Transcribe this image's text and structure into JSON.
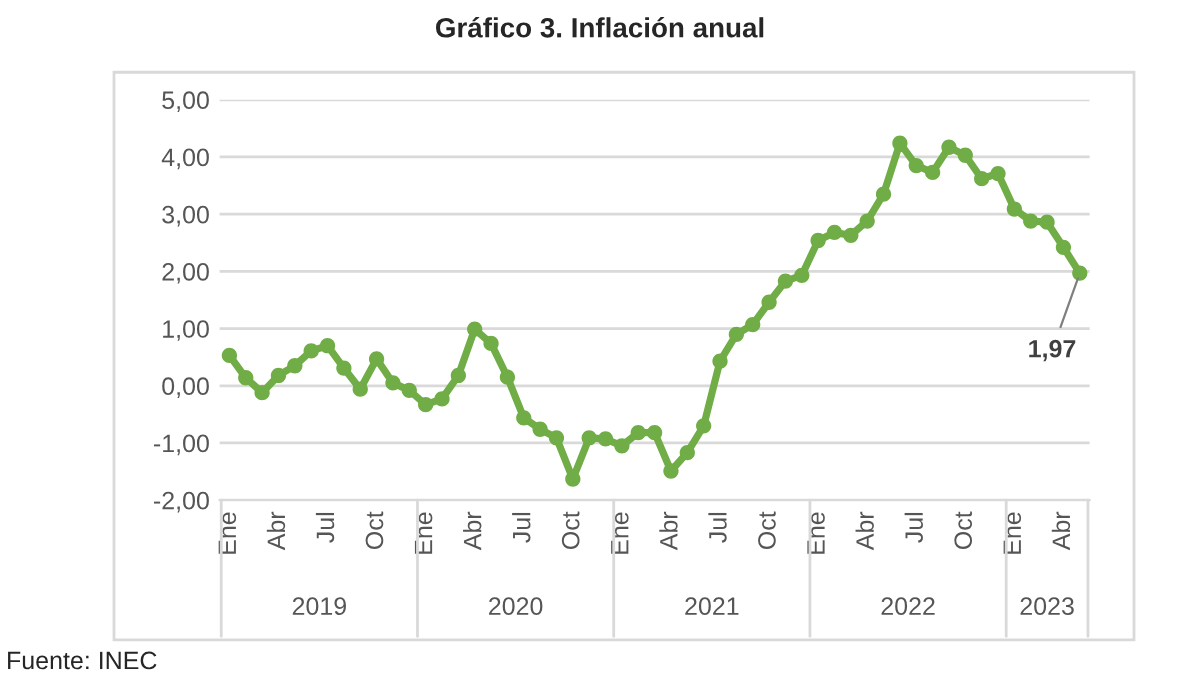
{
  "chart_data": {
    "type": "line",
    "title": "Gráfico 3. Inflación anual",
    "categories": [
      "Ene",
      null,
      null,
      "Abr",
      null,
      null,
      "Jul",
      null,
      null,
      "Oct",
      null,
      null,
      "Ene",
      null,
      null,
      "Abr",
      null,
      null,
      "Jul",
      null,
      null,
      "Oct",
      null,
      null,
      "Ene",
      null,
      null,
      "Abr",
      null,
      null,
      "Jul",
      null,
      null,
      "Oct",
      null,
      null,
      "Ene",
      null,
      null,
      "Abr",
      null,
      null,
      "Jul",
      null,
      null,
      "Oct",
      null,
      null,
      "Ene",
      null,
      null,
      "Abr",
      null
    ],
    "series": [
      {
        "color": "#70ad47",
        "values": [
          0.53,
          0.14,
          -0.12,
          0.18,
          0.35,
          0.61,
          0.7,
          0.31,
          -0.06,
          0.47,
          0.05,
          -0.08,
          -0.33,
          -0.23,
          0.18,
          0.99,
          0.74,
          0.15,
          -0.56,
          -0.76,
          -0.91,
          -1.63,
          -0.91,
          -0.93,
          -1.05,
          -0.82,
          -0.82,
          -1.49,
          -1.17,
          -0.7,
          0.43,
          0.9,
          1.07,
          1.46,
          1.83,
          1.93,
          2.54,
          2.68,
          2.63,
          2.88,
          3.35,
          4.24,
          3.85,
          3.73,
          4.17,
          4.03,
          3.62,
          3.71,
          3.09,
          2.88,
          2.86,
          2.42,
          1.97
        ],
        "value_labels": [
          null,
          null,
          null,
          null,
          null,
          null,
          null,
          null,
          null,
          null,
          null,
          null,
          null,
          null,
          null,
          null,
          null,
          null,
          null,
          null,
          null,
          null,
          null,
          null,
          null,
          null,
          null,
          null,
          null,
          null,
          null,
          null,
          null,
          null,
          null,
          null,
          null,
          null,
          null,
          null,
          null,
          null,
          null,
          null,
          null,
          null,
          null,
          null,
          null,
          null,
          null,
          null,
          "1,97"
        ]
      }
    ],
    "ylim": [
      -2,
      5
    ],
    "yticks": [
      {
        "value": -2,
        "label": "-2,00"
      },
      {
        "value": -1,
        "label": "-1,00"
      },
      {
        "value": 0,
        "label": "0,00"
      },
      {
        "value": 1,
        "label": "1,00"
      },
      {
        "value": 2,
        "label": "2,00"
      },
      {
        "value": 3,
        "label": "3,00"
      },
      {
        "value": 4,
        "label": "4,00"
      },
      {
        "value": 5,
        "label": "5,00"
      }
    ],
    "grid": "y",
    "marker": "circle",
    "line_style": "solid",
    "annotations": [
      "2019",
      "2020",
      "2021",
      "2022",
      "2023",
      "Fuente: INEC"
    ]
  }
}
